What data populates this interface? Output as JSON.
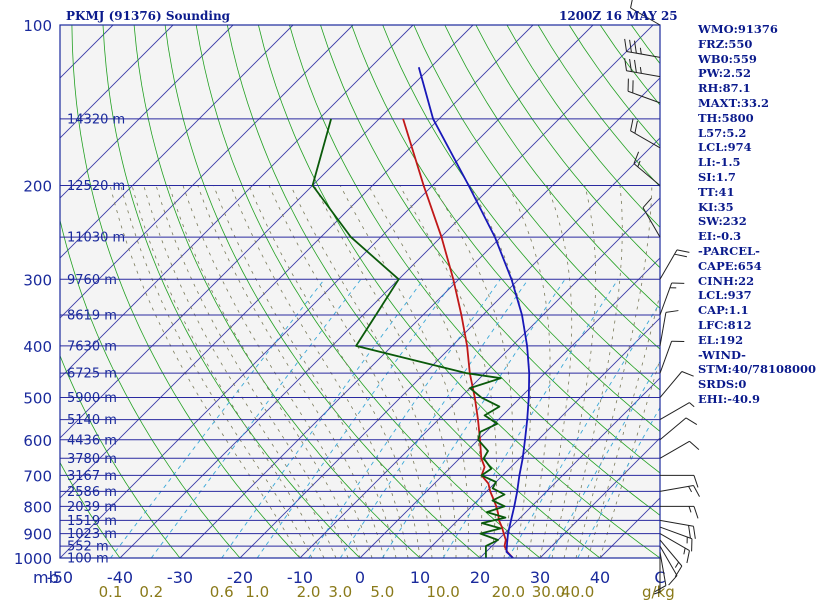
{
  "header": {
    "station": "PKMJ (91376) Sounding",
    "time": "1200Z 16 MAY 25"
  },
  "colors": {
    "frame": "#1a2a9c",
    "isobar": "#2a2aa0",
    "isotherm": "#3a3aa8",
    "dry_adiabat": "#22a022",
    "moist_adiabat": "#7a7a5a",
    "mixing_ratio": "#3aa8d8",
    "temperature": "#c01818",
    "dewpoint": "#0a5a0a",
    "parcel": "#1818b8",
    "wind_barb": "#222222",
    "text": "#0a1a8c"
  },
  "chart_data": {
    "type": "line",
    "chart_kind": "skew-T log-P sounding",
    "p_range": [
      1000,
      100
    ],
    "t_range_at_base": [
      -50,
      50
    ],
    "pressure_levels": [
      100,
      200,
      300,
      400,
      500,
      600,
      700,
      800,
      900,
      1000
    ],
    "pressure_labels": [
      "100",
      "200",
      "300",
      "400",
      "500",
      "600",
      "700",
      "800",
      "900",
      "1000"
    ],
    "pressure_unit": "mb",
    "temperature_ticks": [
      -50,
      -40,
      -30,
      -20,
      -10,
      0,
      10,
      20,
      30,
      40,
      50
    ],
    "temperature_labels": [
      "-50",
      "-40",
      "-30",
      "-20",
      "-10",
      "0",
      "10",
      "20",
      "30",
      "40",
      "C"
    ],
    "mixing_ratio_labels": [
      "0.1",
      "0.2",
      "0.6",
      "1.0",
      "2.0",
      "3.0",
      "5.0",
      "10.0",
      "20.0",
      "30.0",
      "40.0"
    ],
    "mixing_ratio_unit": "g/kg",
    "heights": [
      {
        "p": 1000,
        "label": "100 m"
      },
      {
        "p": 950,
        "label": "552 m"
      },
      {
        "p": 900,
        "label": "1023 m"
      },
      {
        "p": 850,
        "label": "1519 m"
      },
      {
        "p": 800,
        "label": "2039 m"
      },
      {
        "p": 750,
        "label": "2586 m"
      },
      {
        "p": 700,
        "label": "3167 m"
      },
      {
        "p": 650,
        "label": "3780 m"
      },
      {
        "p": 600,
        "label": "4436 m"
      },
      {
        "p": 550,
        "label": "5140 m"
      },
      {
        "p": 500,
        "label": "5900 m"
      },
      {
        "p": 450,
        "label": "6725 m"
      },
      {
        "p": 400,
        "label": "7630 m"
      },
      {
        "p": 350,
        "label": "8619 m"
      },
      {
        "p": 300,
        "label": "9760 m"
      },
      {
        "p": 250,
        "label": "11030 m"
      },
      {
        "p": 200,
        "label": "12520 m"
      },
      {
        "p": 150,
        "label": "14320 m"
      }
    ],
    "series": [
      {
        "key": "temperature",
        "points": [
          [
            1000,
            25.5
          ],
          [
            975,
            23.6
          ],
          [
            950,
            22.1
          ],
          [
            925,
            21.3
          ],
          [
            900,
            19.9
          ],
          [
            875,
            18.5
          ],
          [
            850,
            16.9
          ],
          [
            825,
            15.6
          ],
          [
            800,
            14.1
          ],
          [
            775,
            12.4
          ],
          [
            750,
            10.6
          ],
          [
            725,
            9.0
          ],
          [
            700,
            6.5
          ],
          [
            675,
            5.6
          ],
          [
            650,
            3.6
          ],
          [
            600,
            0.3
          ],
          [
            550,
            -3.4
          ],
          [
            500,
            -7.6
          ],
          [
            450,
            -12.5
          ],
          [
            400,
            -17.5
          ],
          [
            350,
            -23.6
          ],
          [
            300,
            -30.9
          ],
          [
            250,
            -39.9
          ],
          [
            200,
            -51.5
          ],
          [
            150,
            -66.0
          ]
        ]
      },
      {
        "key": "dewpoint",
        "points": [
          [
            1000,
            21.0
          ],
          [
            975,
            20.0
          ],
          [
            950,
            19.0
          ],
          [
            925,
            20.0
          ],
          [
            900,
            16.0
          ],
          [
            880,
            18.5
          ],
          [
            860,
            14.5
          ],
          [
            840,
            17.5
          ],
          [
            820,
            13.5
          ],
          [
            800,
            15.5
          ],
          [
            780,
            12.5
          ],
          [
            760,
            13.5
          ],
          [
            740,
            10.5
          ],
          [
            720,
            10.0
          ],
          [
            700,
            6.5
          ],
          [
            680,
            7.0
          ],
          [
            650,
            4.0
          ],
          [
            630,
            3.5
          ],
          [
            600,
            0.0
          ],
          [
            580,
            -1.0
          ],
          [
            560,
            0.5
          ],
          [
            540,
            -3.0
          ],
          [
            520,
            -2.0
          ],
          [
            500,
            -6.5
          ],
          [
            480,
            -10.0
          ],
          [
            460,
            -6.5
          ],
          [
            450,
            -13.0
          ],
          [
            400,
            -36.0
          ],
          [
            300,
            -40.0
          ],
          [
            250,
            -55.0
          ],
          [
            200,
            -70.0
          ],
          [
            150,
            -78.0
          ]
        ]
      },
      {
        "key": "parcel",
        "points": [
          [
            1000,
            25.5
          ],
          [
            974,
            23.4
          ],
          [
            937,
            22.0
          ],
          [
            900,
            20.6
          ],
          [
            850,
            18.9
          ],
          [
            800,
            17.1
          ],
          [
            750,
            15.1
          ],
          [
            700,
            12.8
          ],
          [
            650,
            10.5
          ],
          [
            600,
            7.8
          ],
          [
            550,
            4.8
          ],
          [
            500,
            1.4
          ],
          [
            450,
            -2.6
          ],
          [
            400,
            -7.5
          ],
          [
            350,
            -13.5
          ],
          [
            300,
            -21.2
          ],
          [
            250,
            -31.0
          ],
          [
            200,
            -44.0
          ],
          [
            150,
            -61.0
          ],
          [
            120,
            -72.0
          ]
        ]
      }
    ],
    "winds": [
      {
        "p": 1000,
        "dir": 180,
        "spd": 5
      },
      {
        "p": 975,
        "dir": 170,
        "spd": 10
      },
      {
        "p": 950,
        "dir": 150,
        "spd": 10
      },
      {
        "p": 925,
        "dir": 140,
        "spd": 15
      },
      {
        "p": 900,
        "dir": 120,
        "spd": 15
      },
      {
        "p": 875,
        "dir": 110,
        "spd": 15
      },
      {
        "p": 850,
        "dir": 100,
        "spd": 20
      },
      {
        "p": 800,
        "dir": 90,
        "spd": 15
      },
      {
        "p": 750,
        "dir": 80,
        "spd": 15
      },
      {
        "p": 700,
        "dir": 90,
        "spd": 10
      },
      {
        "p": 650,
        "dir": 60,
        "spd": 10
      },
      {
        "p": 600,
        "dir": 50,
        "spd": 10
      },
      {
        "p": 550,
        "dir": 60,
        "spd": 5
      },
      {
        "p": 500,
        "dir": 40,
        "spd": 10
      },
      {
        "p": 450,
        "dir": 20,
        "spd": 10
      },
      {
        "p": 400,
        "dir": 10,
        "spd": 10
      },
      {
        "p": 350,
        "dir": 20,
        "spd": 15
      },
      {
        "p": 300,
        "dir": 30,
        "spd": 20
      },
      {
        "p": 250,
        "dir": 330,
        "spd": 10
      },
      {
        "p": 200,
        "dir": 310,
        "spd": 15
      },
      {
        "p": 170,
        "dir": 300,
        "spd": 20
      },
      {
        "p": 140,
        "dir": 290,
        "spd": 20
      },
      {
        "p": 125,
        "dir": 280,
        "spd": 35
      },
      {
        "p": 115,
        "dir": 280,
        "spd": 35
      },
      {
        "p": 100,
        "dir": 300,
        "spd": 10
      }
    ]
  },
  "parameters": [
    "WMO:91376",
    "FRZ:550",
    "WB0:559",
    "PW:2.52",
    "RH:87.1",
    "MAXT:33.2",
    "TH:5800",
    "L57:5.2",
    "LCL:974",
    "LI:-1.5",
    "SI:1.7",
    "TT:41",
    "KI:35",
    "SW:232",
    "EI:-0.3",
    "-PARCEL-",
    "CAPE:654",
    "CINH:22",
    "LCL:937",
    "CAP:1.1",
    "LFC:812",
    "EL:192",
    "-WIND-",
    "STM:40/78108000",
    "SRDS:0",
    "EHI:-40.9"
  ]
}
